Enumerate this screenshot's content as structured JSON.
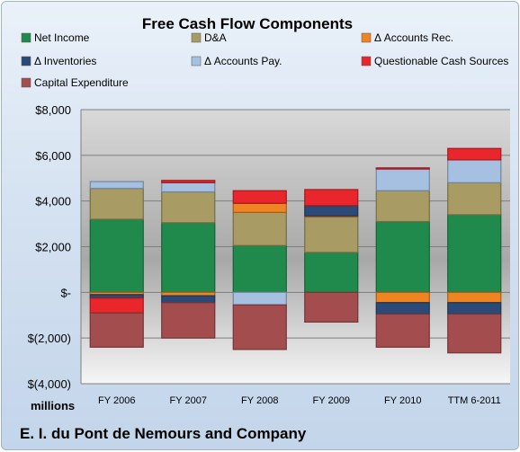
{
  "chart_data": {
    "type": "bar",
    "stacked": true,
    "title": "Free Cash Flow Components",
    "categories": [
      "FY 2006",
      "FY 2007",
      "FY 2008",
      "FY 2009",
      "FY 2010",
      "TTM 6-2011"
    ],
    "series": [
      {
        "name": "Net Income",
        "color": "#1f8a4c",
        "values": [
          3200,
          3050,
          2050,
          1750,
          3100,
          3400
        ]
      },
      {
        "name": "D&A",
        "color": "#a89b63",
        "values": [
          1350,
          1350,
          1450,
          1550,
          1350,
          1400
        ]
      },
      {
        "name": "Δ Accounts Rec.",
        "color": "#ee8422",
        "values": [
          -100,
          -150,
          400,
          50,
          -450,
          -450
        ]
      },
      {
        "name": "Δ Inventories",
        "color": "#2b4a78",
        "values": [
          -150,
          -300,
          0,
          450,
          -500,
          -500
        ]
      },
      {
        "name": "Δ Accounts Pay.",
        "color": "#a5c0e0",
        "values": [
          300,
          400,
          -550,
          0,
          950,
          1000
        ]
      },
      {
        "name": "Questionable Cash Sources",
        "color": "#e8262b",
        "values": [
          -650,
          100,
          550,
          700,
          50,
          500
        ]
      },
      {
        "name": "Capital Expenditure",
        "color": "#a34d4e",
        "values": [
          -1500,
          -1550,
          -1950,
          -1300,
          -1450,
          -1700
        ]
      }
    ],
    "ylim": [
      -4000,
      8000
    ],
    "yticks": [
      {
        "value": 8000,
        "label": "$8,000"
      },
      {
        "value": 6000,
        "label": "$6,000"
      },
      {
        "value": 4000,
        "label": "$4,000"
      },
      {
        "value": 2000,
        "label": "$2,000"
      },
      {
        "value": 0,
        "label": "$-"
      },
      {
        "value": -2000,
        "label": "$(2,000)"
      },
      {
        "value": -4000,
        "label": "$(4,000)"
      }
    ],
    "units_label": "millions",
    "company": "E. I. du Pont de Nemours and Company",
    "grid": true,
    "legend_position": "top"
  }
}
